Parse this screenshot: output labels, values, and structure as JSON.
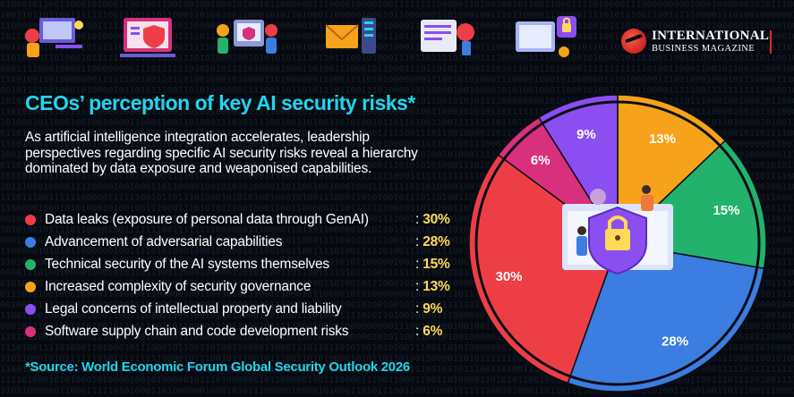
{
  "brand": {
    "line1": "INTERNATIONAL",
    "line2": "BUSINESS MAGAZINE"
  },
  "headline": "CEOs’ perception of key AI security risks*",
  "description": "As artificial intelligence integration accelerates, leadership perspectives regarding specific AI security risks reveal a hierarchy dominated by data exposure and weaponised capabilities.",
  "legend": [
    {
      "label": "Data leaks (exposure of personal data through GenAI)",
      "value": "30%",
      "color": "#ee3e45"
    },
    {
      "label": "Advancement of adversarial capabilities",
      "value": "28%",
      "color": "#3b7de0"
    },
    {
      "label": "Technical security of the AI systems themselves",
      "value": "15%",
      "color": "#22b26c"
    },
    {
      "label": "Increased complexity of security governance",
      "value": "13%",
      "color": "#f6a31b"
    },
    {
      "label": "Legal concerns of intellectual property and liability",
      "value": "9%",
      "color": "#8b4ef0"
    },
    {
      "label": "Software supply chain and code development risks",
      "value": "6%",
      "color": "#d8307c"
    }
  ],
  "source": "*Source: World Economic Forum Global Security Outlook 2026",
  "chart_data": {
    "type": "pie",
    "title": "CEOs’ perception of key AI security risks*",
    "categories": [
      "Data leaks (exposure of personal data through GenAI)",
      "Advancement of adversarial capabilities",
      "Technical security of the AI systems themselves",
      "Increased complexity of security governance",
      "Legal concerns of intellectual property and liability",
      "Software supply chain and code development risks"
    ],
    "values": [
      30,
      28,
      15,
      13,
      9,
      6
    ],
    "labels": [
      "30%",
      "28%",
      "15%",
      "13%",
      "9%",
      "6%"
    ],
    "colors": [
      "#ee3e45",
      "#3b7de0",
      "#22b26c",
      "#f6a31b",
      "#8b4ef0",
      "#d8307c"
    ]
  }
}
